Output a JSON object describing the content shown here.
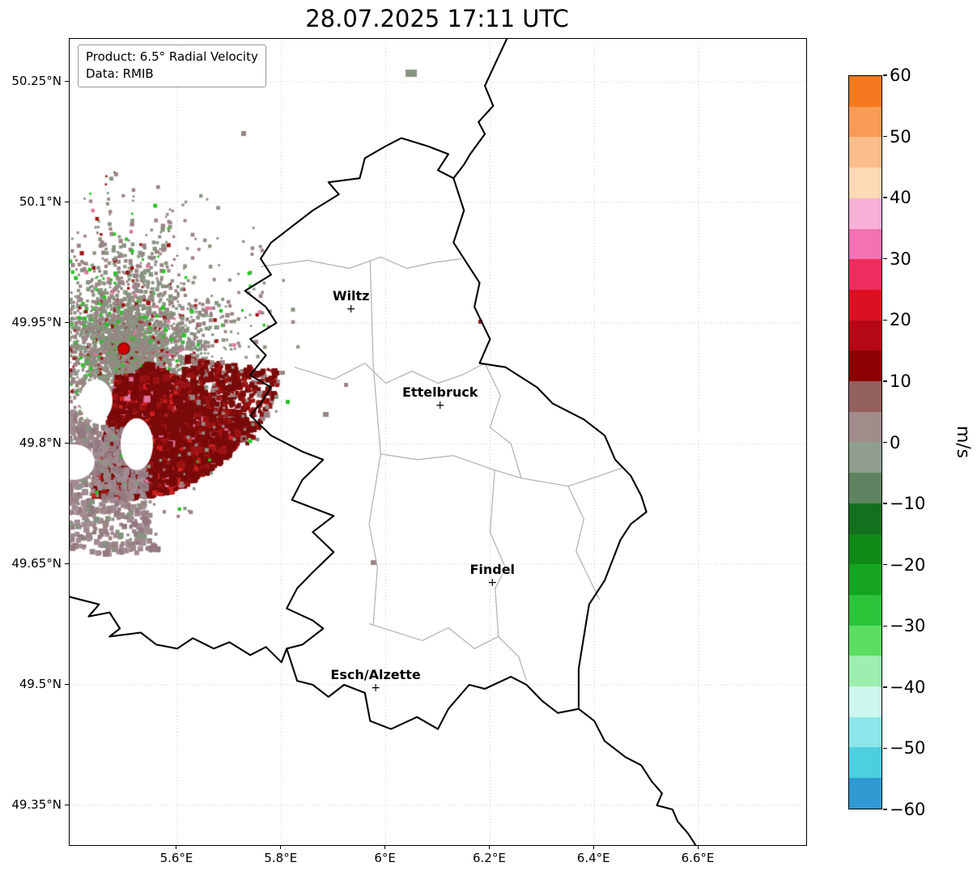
{
  "title": "28.07.2025 17:11 UTC",
  "legend": {
    "product": "Product: 6.5° Radial Velocity",
    "data": "Data: RMIB"
  },
  "colorbar": {
    "label": "m/s",
    "vmin": -60,
    "vmax": 60,
    "tick_values": [
      60,
      50,
      40,
      30,
      20,
      10,
      0,
      -10,
      -20,
      -30,
      -40,
      -50,
      -60
    ],
    "tick_labels": [
      "60",
      "50",
      "40",
      "30",
      "20",
      "10",
      "0",
      "−10",
      "−20",
      "−30",
      "−40",
      "−50",
      "−60"
    ],
    "segments_top_to_bottom": [
      "#f4791f",
      "#f79b55",
      "#fbbd8a",
      "#fdd9b5",
      "#f9b0d6",
      "#f671b2",
      "#ee2c5d",
      "#dd1021",
      "#b50716",
      "#8b0000",
      "#94605f",
      "#a18b8b",
      "#8f9e8f",
      "#5f8360",
      "#14701c",
      "#0f8a16",
      "#16a520",
      "#2ec43a",
      "#5ade62",
      "#9cefae",
      "#cdf6ef",
      "#8ce7ec",
      "#4ccfe0",
      "#2f9ad2"
    ]
  },
  "axes": {
    "lon_min": 5.3935,
    "lon_max": 6.8065,
    "lat_min": 49.3007,
    "lat_max": 50.3034,
    "x_ticks": [
      {
        "lon": 5.6,
        "label": "5.6°E"
      },
      {
        "lon": 5.8,
        "label": "5.8°E"
      },
      {
        "lon": 6.0,
        "label": "6°E"
      },
      {
        "lon": 6.2,
        "label": "6.2°E"
      },
      {
        "lon": 6.4,
        "label": "6.4°E"
      },
      {
        "lon": 6.6,
        "label": "6.6°E"
      }
    ],
    "y_ticks": [
      {
        "lat": 50.25,
        "label": "50.25°N"
      },
      {
        "lat": 50.1,
        "label": "50.1°N"
      },
      {
        "lat": 49.95,
        "label": "49.95°N"
      },
      {
        "lat": 49.8,
        "label": "49.8°N"
      },
      {
        "lat": 49.65,
        "label": "49.65°N"
      },
      {
        "lat": 49.5,
        "label": "49.5°N"
      },
      {
        "lat": 49.35,
        "label": "49.35°N"
      }
    ]
  },
  "cities": [
    {
      "name": "Wiltz",
      "lon": 5.9333,
      "lat": 49.9667
    },
    {
      "name": "Ettelbruck",
      "lon": 6.1042,
      "lat": 49.8472
    },
    {
      "name": "Findel",
      "lon": 6.2044,
      "lat": 49.6264
    },
    {
      "name": "Esch/Alzette",
      "lon": 5.9806,
      "lat": 49.4958
    }
  ],
  "radar": {
    "site_lon": 5.4975,
    "site_lat": 49.918,
    "palette": {
      "gray_rose": "#9b8484",
      "gray_green": "#879480",
      "dark_red": "#7a0a0a",
      "mid_red": "#9c1212",
      "bright_red": "#cf1f1f",
      "bright_green": "#27c427",
      "mauve": "#a28b93",
      "mauve2": "#93797f",
      "pink": "#e0739c",
      "center_dot": "#d40000"
    }
  },
  "map": {
    "country_border": [
      [
        6.13,
        50.13
      ],
      [
        6.1,
        50.14
      ],
      [
        6.12,
        50.16
      ],
      [
        6.08,
        50.17
      ],
      [
        6.03,
        50.18
      ],
      [
        6.0,
        50.17
      ],
      [
        5.96,
        50.155
      ],
      [
        5.95,
        50.13
      ],
      [
        5.89,
        50.125
      ],
      [
        5.91,
        50.11
      ],
      [
        5.86,
        50.09
      ],
      [
        5.82,
        50.07
      ],
      [
        5.78,
        50.05
      ],
      [
        5.76,
        50.03
      ],
      [
        5.78,
        50.01
      ],
      [
        5.73,
        49.99
      ],
      [
        5.77,
        49.97
      ],
      [
        5.79,
        49.95
      ],
      [
        5.74,
        49.93
      ],
      [
        5.77,
        49.91
      ],
      [
        5.74,
        49.885
      ],
      [
        5.78,
        49.87
      ],
      [
        5.76,
        49.85
      ],
      [
        5.74,
        49.835
      ],
      [
        5.78,
        49.81
      ],
      [
        5.84,
        49.79
      ],
      [
        5.88,
        49.78
      ],
      [
        5.84,
        49.755
      ],
      [
        5.82,
        49.73
      ],
      [
        5.86,
        49.72
      ],
      [
        5.9,
        49.71
      ],
      [
        5.86,
        49.69
      ],
      [
        5.9,
        49.665
      ],
      [
        5.86,
        49.64
      ],
      [
        5.83,
        49.62
      ],
      [
        5.81,
        49.595
      ],
      [
        5.86,
        49.58
      ],
      [
        5.88,
        49.57
      ],
      [
        5.84,
        49.55
      ],
      [
        5.81,
        49.545
      ],
      [
        5.83,
        49.505
      ],
      [
        5.86,
        49.5
      ],
      [
        5.89,
        49.485
      ],
      [
        5.92,
        49.5
      ],
      [
        5.96,
        49.49
      ],
      [
        5.97,
        49.455
      ],
      [
        6.01,
        49.445
      ],
      [
        6.06,
        49.46
      ],
      [
        6.1,
        49.445
      ],
      [
        6.12,
        49.47
      ],
      [
        6.16,
        49.5
      ],
      [
        6.19,
        49.495
      ],
      [
        6.24,
        49.51
      ],
      [
        6.27,
        49.5
      ],
      [
        6.3,
        49.48
      ],
      [
        6.33,
        49.465
      ],
      [
        6.37,
        49.47
      ],
      [
        6.37,
        49.52
      ],
      [
        6.38,
        49.56
      ],
      [
        6.39,
        49.6
      ],
      [
        6.42,
        49.63
      ],
      [
        6.45,
        49.68
      ],
      [
        6.47,
        49.7
      ],
      [
        6.5,
        49.715
      ],
      [
        6.49,
        49.735
      ],
      [
        6.47,
        49.76
      ],
      [
        6.44,
        49.78
      ],
      [
        6.42,
        49.81
      ],
      [
        6.38,
        49.83
      ],
      [
        6.32,
        49.85
      ],
      [
        6.29,
        49.87
      ],
      [
        6.23,
        49.895
      ],
      [
        6.18,
        49.9
      ],
      [
        6.2,
        49.93
      ],
      [
        6.17,
        49.97
      ],
      [
        6.18,
        50.0
      ],
      [
        6.13,
        50.05
      ],
      [
        6.15,
        50.09
      ],
      [
        6.13,
        50.13
      ]
    ],
    "external_borders": [
      [
        [
          6.237,
          50.31
        ],
        [
          6.19,
          50.245
        ],
        [
          6.206,
          50.22
        ],
        [
          6.178,
          50.2
        ],
        [
          6.19,
          50.185
        ],
        [
          6.162,
          50.16
        ],
        [
          6.15,
          50.147
        ],
        [
          6.13,
          50.13
        ]
      ],
      [
        [
          5.39,
          49.61
        ],
        [
          5.45,
          49.6
        ],
        [
          5.43,
          49.585
        ],
        [
          5.47,
          49.59
        ],
        [
          5.49,
          49.57
        ],
        [
          5.47,
          49.56
        ],
        [
          5.53,
          49.565
        ],
        [
          5.56,
          49.55
        ],
        [
          5.6,
          49.545
        ],
        [
          5.63,
          49.558
        ],
        [
          5.67,
          49.545
        ],
        [
          5.7,
          49.553
        ],
        [
          5.74,
          49.537
        ],
        [
          5.77,
          49.547
        ],
        [
          5.8,
          49.528
        ],
        [
          5.81,
          49.545
        ]
      ],
      [
        [
          6.37,
          49.47
        ],
        [
          6.4,
          49.455
        ],
        [
          6.42,
          49.43
        ],
        [
          6.46,
          49.41
        ],
        [
          6.49,
          49.4
        ],
        [
          6.51,
          49.38
        ],
        [
          6.53,
          49.365
        ],
        [
          6.52,
          49.35
        ],
        [
          6.55,
          49.345
        ],
        [
          6.56,
          49.33
        ],
        [
          6.58,
          49.315
        ],
        [
          6.6,
          49.295
        ]
      ]
    ],
    "district_borders": [
      [
        [
          5.76,
          50.02
        ],
        [
          5.85,
          50.028
        ],
        [
          5.93,
          50.018
        ],
        [
          5.99,
          50.032
        ],
        [
          6.04,
          50.018
        ],
        [
          6.09,
          50.025
        ],
        [
          6.145,
          50.03
        ]
      ],
      [
        [
          5.825,
          49.895
        ],
        [
          5.9,
          49.88
        ],
        [
          5.96,
          49.9
        ],
        [
          6.0,
          49.875
        ],
        [
          6.05,
          49.89
        ],
        [
          6.1,
          49.875
        ],
        [
          6.145,
          49.885
        ],
        [
          6.19,
          49.9
        ]
      ],
      [
        [
          5.97,
          50.028
        ],
        [
          5.976,
          49.898
        ],
        [
          5.99,
          49.787
        ],
        [
          5.968,
          49.7
        ],
        [
          5.984,
          49.646
        ],
        [
          5.976,
          49.575
        ]
      ],
      [
        [
          5.99,
          49.787
        ],
        [
          6.06,
          49.78
        ],
        [
          6.13,
          49.785
        ],
        [
          6.209,
          49.767
        ],
        [
          6.26,
          49.757
        ],
        [
          6.35,
          49.747
        ],
        [
          6.41,
          49.76
        ],
        [
          6.455,
          49.77
        ]
      ],
      [
        [
          5.968,
          49.576
        ],
        [
          6.07,
          49.555
        ],
        [
          6.12,
          49.571
        ],
        [
          6.17,
          49.545
        ],
        [
          6.216,
          49.56
        ],
        [
          6.255,
          49.535
        ],
        [
          6.27,
          49.505
        ]
      ],
      [
        [
          6.19,
          49.9
        ],
        [
          6.22,
          49.86
        ],
        [
          6.2,
          49.82
        ],
        [
          6.24,
          49.8
        ],
        [
          6.26,
          49.757
        ]
      ],
      [
        [
          6.209,
          49.767
        ],
        [
          6.2,
          49.69
        ],
        [
          6.23,
          49.645
        ],
        [
          6.21,
          49.62
        ],
        [
          6.216,
          49.56
        ]
      ],
      [
        [
          6.35,
          49.747
        ],
        [
          6.38,
          49.706
        ],
        [
          6.365,
          49.666
        ],
        [
          6.395,
          49.626
        ],
        [
          6.41,
          49.606
        ]
      ]
    ]
  }
}
